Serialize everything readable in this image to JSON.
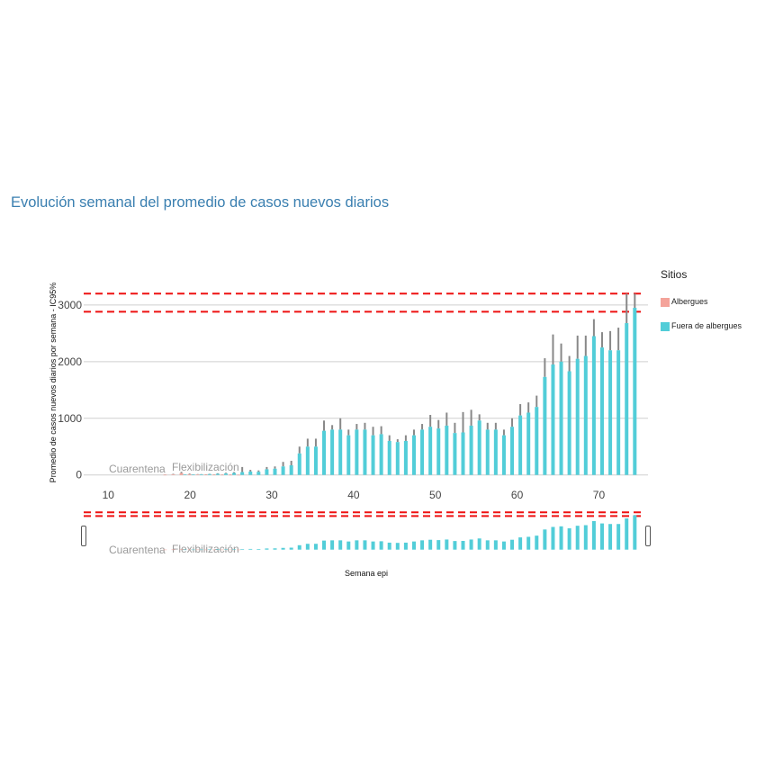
{
  "title": "Evolución semanal del promedio de casos nuevos diarios",
  "legend": {
    "title": "Sitios",
    "items": [
      {
        "label": "Albergues",
        "color": "#f4a39a"
      },
      {
        "label": "Fuera de albergues",
        "color": "#52cdd8"
      }
    ]
  },
  "annotations": {
    "quarantine": "Cuarentena",
    "flex": "Flexibilización"
  },
  "chart_data": {
    "type": "bar",
    "title": "Evolución semanal del promedio de casos nuevos diarios",
    "xlabel": "Semana epi",
    "ylabel": "Promedio de casos nuevos diarios por semana - IC95%",
    "xlim": [
      7,
      76
    ],
    "ylim": [
      -100,
      3300
    ],
    "x_ticks": [
      10,
      20,
      30,
      40,
      50,
      60,
      70
    ],
    "y_ticks": [
      0,
      1000,
      2000,
      3000
    ],
    "grid": true,
    "legend_position": "right",
    "reference_lines": [
      3200,
      2880
    ],
    "series": [
      {
        "name": "Albergues",
        "color": "#f4a39a",
        "x": [
          17,
          18,
          19,
          20,
          21,
          22,
          23,
          24,
          25,
          26
        ],
        "values": [
          3,
          10,
          30,
          12,
          8,
          5,
          4,
          3,
          3,
          2
        ],
        "upper": [
          6,
          20,
          55,
          25,
          15,
          10,
          8,
          6,
          6,
          4
        ]
      },
      {
        "name": "Fuera de albergues",
        "color": "#52cdd8",
        "x": [
          19,
          20,
          21,
          22,
          23,
          24,
          25,
          26,
          27,
          28,
          29,
          30,
          31,
          32,
          33,
          34,
          35,
          36,
          37,
          38,
          39,
          40,
          41,
          42,
          43,
          44,
          45,
          46,
          47,
          48,
          49,
          50,
          51,
          52,
          53,
          54,
          55,
          56,
          57,
          58,
          59,
          60,
          61,
          62,
          63,
          64,
          65,
          66,
          67,
          68,
          69,
          70,
          71,
          72,
          73,
          74
        ],
        "values": [
          5,
          8,
          10,
          15,
          20,
          25,
          35,
          50,
          60,
          55,
          100,
          110,
          150,
          170,
          380,
          500,
          500,
          780,
          800,
          800,
          700,
          800,
          800,
          700,
          720,
          600,
          580,
          600,
          700,
          800,
          850,
          820,
          870,
          740,
          750,
          870,
          960,
          800,
          800,
          700,
          850,
          1050,
          1100,
          1200,
          1730,
          1950,
          2000,
          1830,
          2050,
          2100,
          2450,
          2250,
          2200,
          2200,
          2680,
          2950
        ],
        "upper": [
          8,
          12,
          15,
          22,
          30,
          38,
          50,
          140,
          90,
          80,
          140,
          150,
          230,
          250,
          500,
          640,
          640,
          960,
          880,
          1000,
          800,
          900,
          920,
          850,
          860,
          700,
          630,
          700,
          800,
          900,
          1060,
          970,
          1100,
          920,
          1110,
          1150,
          1070,
          920,
          920,
          800,
          1000,
          1250,
          1280,
          1400,
          2060,
          2480,
          2320,
          2100,
          2460,
          2460,
          2750,
          2520,
          2540,
          2600,
          3200,
          3200
        ]
      }
    ]
  }
}
